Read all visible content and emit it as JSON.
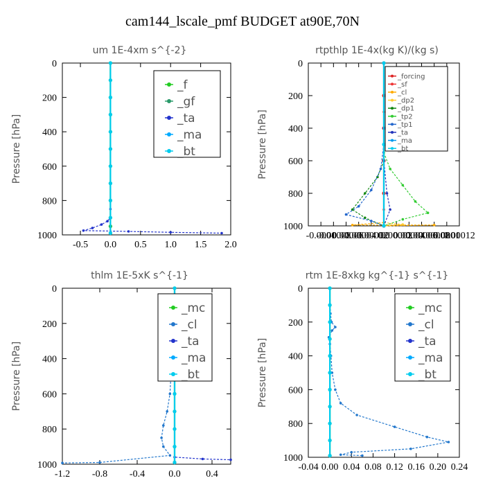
{
  "figure_title": "cam144_lscale_pmf  BUDGET at90E,70N",
  "chart_data": [
    {
      "type": "line",
      "title": "um   1E-4xm s^{-2}",
      "ylabel": "Pressure [hPa]",
      "xlim": [
        -0.8,
        2.0
      ],
      "ylim": [
        1000,
        0
      ],
      "xticks": [
        -0.5,
        0.0,
        0.5,
        1.0,
        1.5,
        2.0
      ],
      "xtick_labels": [
        "-0.5",
        "0.0",
        "0.5",
        "1.0",
        "1.5",
        "2.0"
      ],
      "yticks": [
        0,
        200,
        400,
        600,
        800,
        1000
      ],
      "legend_position": "top-right",
      "series": [
        {
          "name": "_f",
          "color": "#22cc22",
          "points": [
            [
              0,
              0
            ],
            [
              0,
              100
            ],
            [
              0,
              200
            ],
            [
              0,
              300
            ],
            [
              0,
              400
            ],
            [
              0,
              500
            ],
            [
              0,
              600
            ],
            [
              0,
              700
            ],
            [
              0,
              800
            ],
            [
              0,
              900
            ],
            [
              0,
              950
            ],
            [
              0,
              990
            ]
          ]
        },
        {
          "name": "_gf",
          "color": "#2a9a6a",
          "points": [
            [
              0,
              0
            ],
            [
              0,
              100
            ],
            [
              0,
              200
            ],
            [
              0,
              300
            ],
            [
              0,
              400
            ],
            [
              0,
              500
            ],
            [
              0,
              600
            ],
            [
              0,
              700
            ],
            [
              0,
              800
            ],
            [
              0,
              900
            ],
            [
              0,
              950
            ],
            [
              0,
              990
            ]
          ]
        },
        {
          "name": "_ta",
          "color": "#2233cc",
          "points": [
            [
              0,
              0
            ],
            [
              0,
              200
            ],
            [
              0,
              400
            ],
            [
              0,
              600
            ],
            [
              0,
              800
            ],
            [
              0,
              850
            ],
            [
              0,
              900
            ],
            [
              -0.05,
              920
            ],
            [
              -0.15,
              940
            ],
            [
              -0.3,
              960
            ],
            [
              -0.45,
              975
            ],
            [
              0.3,
              980
            ],
            [
              1.0,
              985
            ],
            [
              1.85,
              990
            ]
          ]
        },
        {
          "name": "_ma",
          "color": "#00aaff",
          "points": [
            [
              0,
              0
            ],
            [
              0,
              200
            ],
            [
              0,
              400
            ],
            [
              0,
              600
            ],
            [
              0,
              800
            ],
            [
              0,
              900
            ],
            [
              0,
              990
            ]
          ]
        },
        {
          "name": "_bt",
          "color": "#00ccee",
          "points": [
            [
              0,
              0
            ],
            [
              0,
              100
            ],
            [
              0,
              200
            ],
            [
              0,
              300
            ],
            [
              0,
              400
            ],
            [
              0,
              500
            ],
            [
              0,
              600
            ],
            [
              0,
              700
            ],
            [
              0,
              800
            ],
            [
              0,
              900
            ],
            [
              0,
              990
            ]
          ]
        }
      ]
    },
    {
      "type": "line",
      "title": "rtpthlp   1E-4x(kg K)/(kg s)",
      "ylabel": "Pressure [hPa]",
      "xlim": [
        -0.00012,
        0.00012
      ],
      "ylim": [
        1000,
        0
      ],
      "xticks": [
        -0.0001,
        -8e-05,
        -6e-05,
        -4e-05,
        -2e-05,
        0.0,
        2e-05,
        4e-05,
        6e-05,
        8e-05,
        0.0001,
        0.00012
      ],
      "xtick_labels": [
        "-0.0001",
        "-0.00008",
        "-0.00006",
        "-0.00004",
        "-0.00002",
        "0.0",
        "0.00002",
        "0.00004",
        "0.00006",
        "0.00008",
        "0.0001",
        "0.00012"
      ],
      "yticks": [
        0,
        200,
        400,
        600,
        800,
        1000
      ],
      "legend_position": "top-right",
      "series": [
        {
          "name": "_forcing",
          "color": "#dd2222",
          "points": [
            [
              0,
              0
            ],
            [
              0,
              200
            ],
            [
              0,
              400
            ],
            [
              0,
              600
            ],
            [
              0,
              800
            ],
            [
              0,
              1000
            ]
          ]
        },
        {
          "name": "_sf",
          "color": "#ee3333",
          "points": [
            [
              0,
              0
            ],
            [
              0,
              300
            ],
            [
              0,
              600
            ],
            [
              0,
              900
            ],
            [
              0,
              1000
            ]
          ]
        },
        {
          "name": "_cl",
          "color": "#ffaa00",
          "points": [
            [
              0,
              980
            ],
            [
              -5e-05,
              995
            ],
            [
              8e-05,
              995
            ],
            [
              0,
              1000
            ]
          ]
        },
        {
          "name": "_dp2",
          "color": "#ffcc33",
          "points": [
            [
              0,
              980
            ],
            [
              3e-05,
              992
            ],
            [
              0,
              1000
            ]
          ]
        },
        {
          "name": "_dp1",
          "color": "#118811",
          "points": [
            [
              0,
              600
            ],
            [
              -1e-05,
              700
            ],
            [
              -3e-05,
              800
            ],
            [
              -5e-05,
              900
            ],
            [
              -3e-05,
              950
            ],
            [
              0,
              1000
            ]
          ]
        },
        {
          "name": "_tp2",
          "color": "#33cc33",
          "points": [
            [
              0,
              550
            ],
            [
              1e-05,
              650
            ],
            [
              3e-05,
              750
            ],
            [
              5e-05,
              850
            ],
            [
              7e-05,
              920
            ],
            [
              3e-05,
              960
            ],
            [
              0,
              1000
            ]
          ]
        },
        {
          "name": "_tp1",
          "color": "#2266cc",
          "points": [
            [
              0,
              500
            ],
            [
              -5e-06,
              650
            ],
            [
              -2e-05,
              780
            ],
            [
              -4e-05,
              880
            ],
            [
              -6e-05,
              930
            ],
            [
              -2e-05,
              970
            ],
            [
              0,
              1000
            ]
          ]
        },
        {
          "name": "_ta",
          "color": "#2233bb",
          "points": [
            [
              0,
              0
            ],
            [
              0,
              400
            ],
            [
              0,
              600
            ],
            [
              5e-06,
              800
            ],
            [
              1e-05,
              900
            ],
            [
              0,
              1000
            ]
          ]
        },
        {
          "name": "_ma",
          "color": "#0099ee",
          "points": [
            [
              0,
              0
            ],
            [
              0,
              500
            ],
            [
              0,
              1000
            ]
          ]
        },
        {
          "name": "_bt",
          "color": "#00ccee",
          "points": [
            [
              0,
              0
            ],
            [
              0,
              500
            ],
            [
              0,
              1000
            ]
          ]
        }
      ]
    },
    {
      "type": "line",
      "title": "thlm   1E-5xK s^{-1}",
      "ylabel": "Pressure [hPa]",
      "xlim": [
        -1.2,
        0.6
      ],
      "ylim": [
        1000,
        0
      ],
      "xticks": [
        -1.2,
        -0.8,
        -0.4,
        0.0,
        0.4
      ],
      "xtick_labels": [
        "-1.2",
        "-0.8",
        "-0.4",
        "0.0",
        "0.4"
      ],
      "yticks": [
        0,
        200,
        400,
        600,
        800,
        1000
      ],
      "legend_position": "top-right",
      "series": [
        {
          "name": "_mc",
          "color": "#22cc22",
          "points": [
            [
              0,
              0
            ],
            [
              0,
              100
            ],
            [
              0,
              200
            ],
            [
              0,
              300
            ],
            [
              0,
              400
            ],
            [
              0,
              500
            ],
            [
              0,
              600
            ],
            [
              0,
              700
            ],
            [
              0,
              800
            ],
            [
              0,
              900
            ],
            [
              0,
              990
            ]
          ]
        },
        {
          "name": "_cl",
          "color": "#2277cc",
          "points": [
            [
              0,
              0
            ],
            [
              0,
              100
            ],
            [
              -0.01,
              200
            ],
            [
              -0.02,
              300
            ],
            [
              -0.03,
              400
            ],
            [
              -0.04,
              500
            ],
            [
              -0.05,
              600
            ],
            [
              -0.08,
              700
            ],
            [
              -0.12,
              780
            ],
            [
              -0.14,
              850
            ],
            [
              -0.12,
              900
            ],
            [
              -0.05,
              950
            ],
            [
              -0.8,
              990
            ],
            [
              -1.2,
              993
            ]
          ]
        },
        {
          "name": "_ta",
          "color": "#2233cc",
          "points": [
            [
              0,
              0
            ],
            [
              0,
              400
            ],
            [
              0,
              700
            ],
            [
              0,
              900
            ],
            [
              0,
              960
            ],
            [
              0.3,
              970
            ],
            [
              0.6,
              975
            ]
          ]
        },
        {
          "name": "_ma",
          "color": "#00aaff",
          "points": [
            [
              0,
              0
            ],
            [
              0,
              500
            ],
            [
              0,
              990
            ]
          ]
        },
        {
          "name": "_bt",
          "color": "#00ccee",
          "points": [
            [
              0,
              0
            ],
            [
              0,
              100
            ],
            [
              0,
              200
            ],
            [
              0,
              300
            ],
            [
              0,
              400
            ],
            [
              0,
              500
            ],
            [
              0,
              600
            ],
            [
              0,
              700
            ],
            [
              0,
              800
            ],
            [
              0,
              900
            ],
            [
              0,
              990
            ]
          ]
        }
      ]
    },
    {
      "type": "line",
      "title": "rtm   1E-8xkg kg^{-1} s^{-1}",
      "ylabel": "Pressure [hPa]",
      "xlim": [
        -0.04,
        0.24
      ],
      "ylim": [
        1000,
        0
      ],
      "xticks": [
        -0.04,
        0.0,
        0.04,
        0.08,
        0.12,
        0.16,
        0.2,
        0.24
      ],
      "xtick_labels": [
        "-0.04",
        "0.00",
        "0.04",
        "0.08",
        "0.12",
        "0.16",
        "0.20",
        "0.24"
      ],
      "yticks": [
        0,
        200,
        400,
        600,
        800,
        1000
      ],
      "legend_position": "top-right",
      "series": [
        {
          "name": "_mc",
          "color": "#22cc22",
          "points": [
            [
              0,
              0
            ],
            [
              0,
              100
            ],
            [
              0,
              200
            ],
            [
              0,
              300
            ],
            [
              0,
              400
            ],
            [
              0,
              500
            ],
            [
              0,
              600
            ],
            [
              0,
              700
            ],
            [
              0,
              800
            ],
            [
              0,
              900
            ],
            [
              0,
              990
            ]
          ]
        },
        {
          "name": "_cl",
          "color": "#2277cc",
          "points": [
            [
              0,
              0
            ],
            [
              0.001,
              150
            ],
            [
              0.003,
              200
            ],
            [
              0.01,
              230
            ],
            [
              0.004,
              250
            ],
            [
              -0.002,
              290
            ],
            [
              0.0,
              330
            ],
            [
              0.002,
              400
            ],
            [
              0.004,
              500
            ],
            [
              0.01,
              600
            ],
            [
              0.02,
              680
            ],
            [
              0.05,
              750
            ],
            [
              0.12,
              820
            ],
            [
              0.18,
              880
            ],
            [
              0.22,
              910
            ],
            [
              0.15,
              950
            ],
            [
              0.04,
              970
            ],
            [
              0.02,
              985
            ],
            [
              0.06,
              990
            ]
          ]
        },
        {
          "name": "_ta",
          "color": "#2233cc",
          "points": [
            [
              0,
              0
            ],
            [
              0,
              500
            ],
            [
              0,
              990
            ]
          ]
        },
        {
          "name": "_ma",
          "color": "#00aaff",
          "points": [
            [
              0,
              0
            ],
            [
              0,
              500
            ],
            [
              0,
              990
            ]
          ]
        },
        {
          "name": "_bt",
          "color": "#00ccee",
          "points": [
            [
              0,
              0
            ],
            [
              0,
              100
            ],
            [
              0,
              200
            ],
            [
              0,
              300
            ],
            [
              0,
              400
            ],
            [
              0,
              500
            ],
            [
              0,
              600
            ],
            [
              0,
              700
            ],
            [
              0,
              800
            ],
            [
              0,
              900
            ],
            [
              0,
              990
            ]
          ]
        }
      ]
    }
  ]
}
